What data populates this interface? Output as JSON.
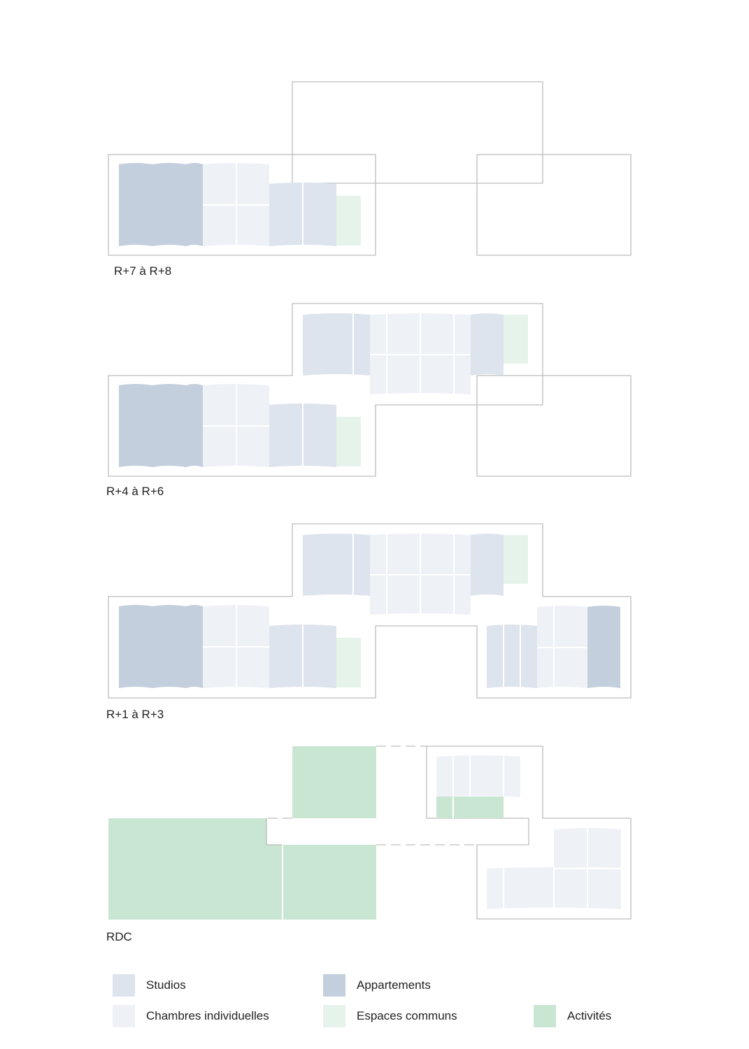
{
  "colors": {
    "studio": "#dde4ee",
    "chambre": "#eef2f7",
    "appartement": "#c3cfdd",
    "commun": "#e6f3ea",
    "activite": "#c9e6d3",
    "outline": "#bdbdbd"
  },
  "floors": {
    "f1": {
      "label": "R+7 à R+8"
    },
    "f2": {
      "label": "R+4 à R+6"
    },
    "f3": {
      "label": "R+1 à R+3"
    },
    "f4": {
      "label": "RDC"
    }
  },
  "legend": {
    "studio": {
      "label": "Studios",
      "color": "#dde4ee"
    },
    "chambre": {
      "label": "Chambres individuelles",
      "color": "#eef2f7"
    },
    "appartement": {
      "label": "Appartements",
      "color": "#c3cfdd"
    },
    "commun": {
      "label": "Espaces communs",
      "color": "#e6f3ea"
    },
    "activite": {
      "label": "Activités",
      "color": "#c9e6d3"
    }
  }
}
